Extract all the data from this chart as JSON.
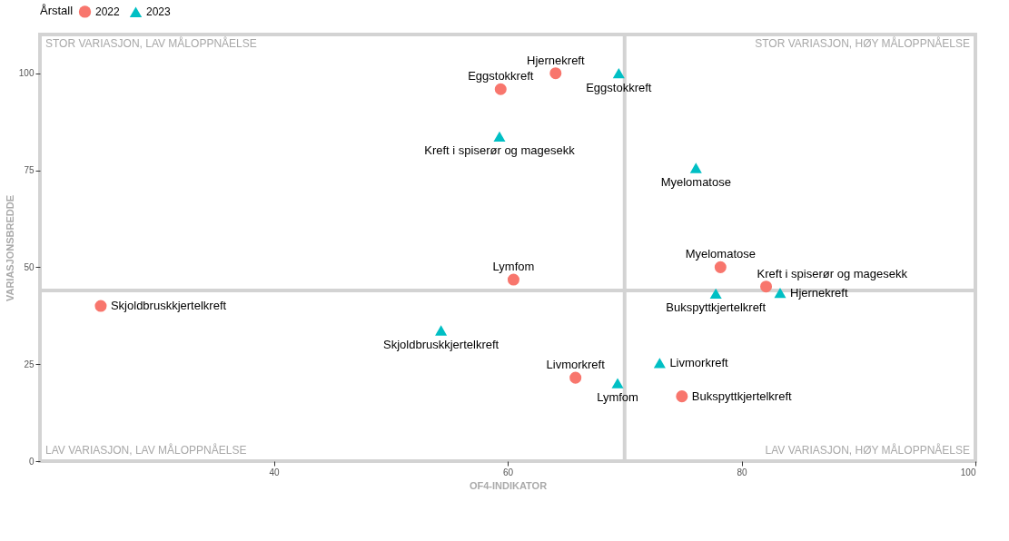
{
  "chart_data": {
    "type": "scatter",
    "xlabel": "OF4-INDIKATOR",
    "ylabel": "VARIASJONSBREDDE",
    "legend_title": "Årstall",
    "xlim": [
      20,
      100
    ],
    "xticks": [
      40,
      60,
      80,
      100
    ],
    "ylim": [
      0,
      110
    ],
    "yticks": [
      0,
      25,
      50,
      75,
      100
    ],
    "grid": false,
    "legend": "top",
    "ref_lines": [
      {
        "axis": "x",
        "value": 70,
        "color": "#d3d3d3"
      },
      {
        "axis": "y",
        "value": 44,
        "color": "#d3d3d3"
      }
    ],
    "series": [
      {
        "name": "2022",
        "color": "#f8766d",
        "marker": "circle",
        "x": [
          64.1,
          59.4,
          60.5,
          78.2,
          82.1,
          25.2,
          65.8,
          74.9
        ],
        "values": [
          100,
          95.9,
          46.8,
          50,
          45,
          40,
          21.5,
          16.7
        ],
        "value_labels": [
          "Hjernekreft",
          "Eggstokkreft",
          "Lymfom",
          "Myelomatose",
          "Kreft i spiserør og magesekk",
          "Skjoldbruskkjertelkreft",
          "Livmorkreft",
          "Bukspyttkjertelkreft"
        ]
      },
      {
        "name": "2023",
        "color": "#00bfc4",
        "marker": "triangle",
        "x": [
          69.5,
          59.3,
          76.1,
          77.8,
          83.3,
          54.3,
          73.0,
          69.4
        ],
        "values": [
          100,
          83.7,
          75.6,
          43.2,
          43.4,
          33.7,
          25.3,
          20.1
        ],
        "value_labels": [
          "Eggstokkreft",
          "Kreft i spiserør og magesekk",
          "Myelomatose",
          "Bukspyttkjertelkreft",
          "Hjernekreft",
          "Skjoldbruskkjertelkreft",
          "Livmorkreft",
          "Lymfom"
        ]
      }
    ],
    "annotations": [
      "STOR VARIASJON, LAV MÅLOPPNÅELSE",
      "STOR VARIASJON, HØY MÅLOPPNÅELSE",
      "LAV VARIASJON, LAV MÅLOPPNÅELSE",
      "LAV VARIASJON, HØY MÅLOPPNÅELSE"
    ]
  }
}
